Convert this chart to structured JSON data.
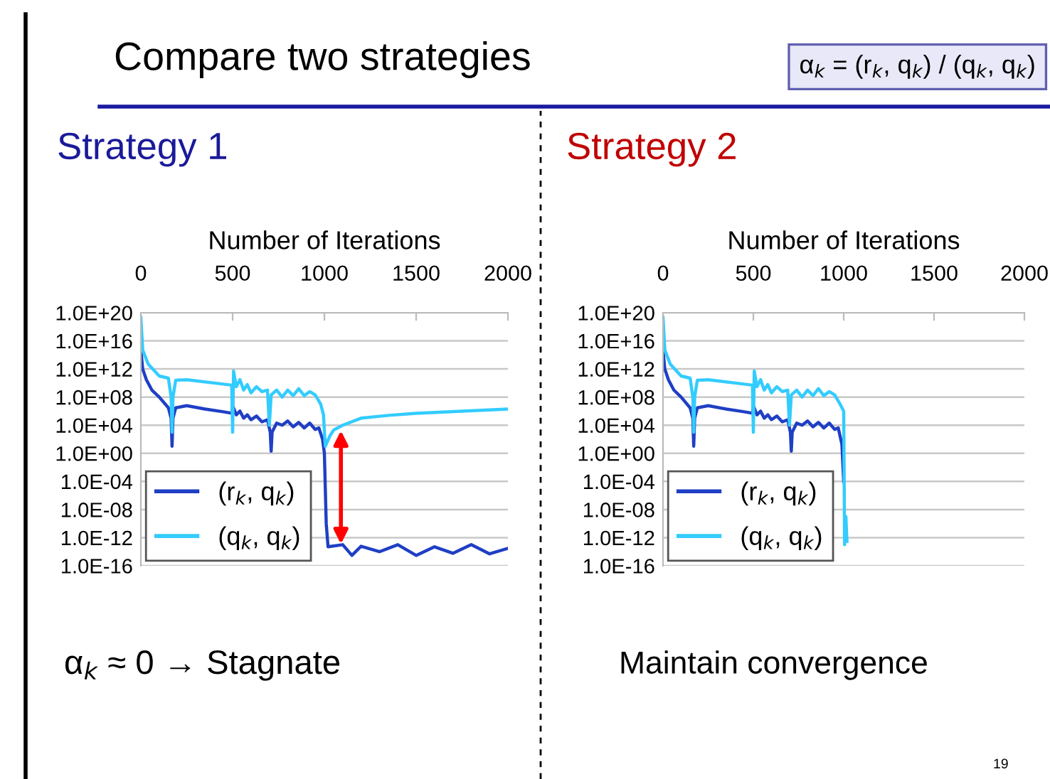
{
  "chart_data": [
    {
      "type": "line",
      "title": "Strategy 1",
      "xlabel": "Number of Iterations",
      "log": "y",
      "grid": "y",
      "legend": "bottom left",
      "marker": "none",
      "line_style": "solid",
      "xlim": [
        0,
        2000
      ],
      "xticks": [
        0,
        500,
        1000,
        1500,
        2000
      ],
      "ylim": [
        1e-16,
        1e+20
      ],
      "yticks": [
        {
          "value": 1e-16,
          "label": "1.0E-16"
        },
        {
          "value": 1e-12,
          "label": "1.0E-12"
        },
        {
          "value": 1e-08,
          "label": "1.0E-08"
        },
        {
          "value": 0.0001,
          "label": "1.0E-04"
        },
        {
          "value": 1,
          "label": "1.0E+00"
        },
        {
          "value": 10000.0,
          "label": "1.0E+04"
        },
        {
          "value": 100000000.0,
          "label": "1.0E+08"
        },
        {
          "value": 1000000000000.0,
          "label": "1.0E+12"
        },
        {
          "value": 1e+16,
          "label": "1.0E+16"
        },
        {
          "value": 1e+20,
          "label": "1.0E+20"
        }
      ],
      "annotations": [
        "Compare two strategies",
        "α$_{k}$ = (r$_{k}$, q$_{k}$) / (q$_{k}$, q$_{k}$)",
        "α$_{k}$ ≈ 0 → Stagnate"
      ],
      "series": [
        {
          "name": "(r$_{k}$, q$_{k}$)",
          "color": "#1f3fc4",
          "x": [
            0,
            10,
            30,
            60,
            100,
            150,
            165,
            170,
            175,
            190,
            250,
            350,
            450,
            495,
            500,
            520,
            540,
            560,
            580,
            600,
            630,
            660,
            690,
            705,
            710,
            715,
            740,
            770,
            800,
            830,
            860,
            890,
            920,
            950,
            970,
            990,
            1000,
            1010,
            1020,
            1100,
            1150,
            1200,
            1300,
            1400,
            1500,
            1600,
            1700,
            1800,
            1900,
            2000
          ],
          "values": [
            500000000000000.0,
            1000000000000.0,
            30000000000.0,
            1000000000.0,
            100000000.0,
            3000000.0,
            100000.0,
            10,
            100000.0,
            3000000.0,
            6000000.0,
            2000000.0,
            800000.0,
            500000.0,
            6000000.0,
            300000.0,
            1000000.0,
            100000.0,
            300000.0,
            60000.0,
            200000.0,
            30000.0,
            60000.0,
            1000.0,
            2,
            1000.0,
            20000.0,
            10000.0,
            40000.0,
            6000.0,
            25000.0,
            4000.0,
            20000.0,
            2500.0,
            4000.0,
            100,
            1,
            1e-10,
            5e-14,
            1e-13,
            3e-15,
            6e-14,
            1e-14,
            1e-13,
            3e-15,
            5e-14,
            6e-15,
            1e-13,
            5e-15,
            3e-14
          ]
        },
        {
          "name": "(q$_{k}$, q$_{k}$)",
          "color": "#33ccff",
          "x": [
            0,
            10,
            40,
            100,
            150,
            165,
            170,
            175,
            190,
            250,
            400,
            495,
            500,
            505,
            520,
            540,
            560,
            580,
            600,
            630,
            660,
            690,
            700,
            710,
            740,
            770,
            800,
            830,
            860,
            890,
            920,
            950,
            980,
            995,
            1005,
            1030,
            1050,
            1100,
            1200,
            1350,
            1500,
            1750,
            2000
          ],
          "values": [
            2e+19,
            500000000000000.0,
            5000000000000.0,
            100000000000.0,
            50000000000.0,
            100000000.0,
            1000.0,
            100000000.0,
            25000000000.0,
            30000000000.0,
            10000000000.0,
            5000000000.0,
            1000.0,
            500000000000.0,
            3000000000.0,
            30000000000.0,
            1000000000.0,
            6000000000.0,
            400000000.0,
            3000000000.0,
            600000000.0,
            1000000000.0,
            10000.0,
            200000000.0,
            1000000000.0,
            100000000.0,
            1000000000.0,
            160000000.0,
            1600000000.0,
            160000000.0,
            600000000.0,
            200000000.0,
            10000000.0,
            300000.0,
            10,
            300,
            2000.0,
            10000.0,
            100000.0,
            250000.0,
            500000.0,
            1000000.0,
            2000000.0
          ]
        }
      ]
    },
    {
      "type": "line",
      "title": "Strategy 2",
      "xlabel": "Number of Iterations",
      "log": "y",
      "grid": "y",
      "legend": "bottom left",
      "marker": "none",
      "line_style": "solid",
      "xlim": [
        0,
        2000
      ],
      "xticks": [
        0,
        500,
        1000,
        1500,
        2000
      ],
      "ylim": [
        1e-16,
        1e+20
      ],
      "yticks": [
        {
          "value": 1e-16,
          "label": "1.0E-16"
        },
        {
          "value": 1e-12,
          "label": "1.0E-12"
        },
        {
          "value": 1e-08,
          "label": "1.0E-08"
        },
        {
          "value": 0.0001,
          "label": "1.0E-04"
        },
        {
          "value": 1,
          "label": "1.0E+00"
        },
        {
          "value": 10000.0,
          "label": "1.0E+04"
        },
        {
          "value": 100000000.0,
          "label": "1.0E+08"
        },
        {
          "value": 1000000000000.0,
          "label": "1.0E+12"
        },
        {
          "value": 1e+16,
          "label": "1.0E+16"
        },
        {
          "value": 1e+20,
          "label": "1.0E+20"
        }
      ],
      "annotations": [
        "Maintain convergence",
        "19"
      ],
      "series": [
        {
          "name": "(r$_{k}$, q$_{k}$)",
          "color": "#1f3fc4",
          "x": [
            0,
            10,
            30,
            60,
            100,
            150,
            165,
            170,
            175,
            190,
            250,
            350,
            450,
            495,
            500,
            520,
            540,
            560,
            580,
            600,
            630,
            660,
            690,
            705,
            710,
            715,
            740,
            770,
            800,
            830,
            860,
            890,
            920,
            950,
            970,
            990,
            1000
          ],
          "values": [
            500000000000000.0,
            1000000000000.0,
            30000000000.0,
            1000000000.0,
            100000000.0,
            3000000.0,
            100000.0,
            10,
            100000.0,
            3000000.0,
            6000000.0,
            2000000.0,
            800000.0,
            500000.0,
            6000000.0,
            300000.0,
            1000000.0,
            100000.0,
            300000.0,
            60000.0,
            200000.0,
            30000.0,
            60000.0,
            1000.0,
            2,
            1000.0,
            20000.0,
            10000.0,
            40000.0,
            6000.0,
            25000.0,
            4000.0,
            20000.0,
            2500.0,
            4000.0,
            20,
            0.0001
          ]
        },
        {
          "name": "(q$_{k}$, q$_{k}$)",
          "color": "#33ccff",
          "x": [
            0,
            10,
            40,
            100,
            150,
            165,
            170,
            175,
            190,
            250,
            400,
            495,
            500,
            505,
            520,
            540,
            560,
            580,
            600,
            630,
            660,
            690,
            700,
            710,
            740,
            770,
            800,
            830,
            860,
            890,
            920,
            950,
            980,
            1000,
            1005,
            1012,
            1018
          ],
          "values": [
            2e+19,
            500000000000000.0,
            5000000000000.0,
            100000000000.0,
            50000000000.0,
            100000000.0,
            1000.0,
            100000000.0,
            25000000000.0,
            30000000000.0,
            10000000000.0,
            5000000000.0,
            1000.0,
            500000000000.0,
            3000000000.0,
            30000000000.0,
            1000000000.0,
            6000000000.0,
            400000000.0,
            3000000000.0,
            600000000.0,
            1000000000.0,
            10000.0,
            200000000.0,
            1000000000.0,
            100000000.0,
            1000000000.0,
            160000000.0,
            1600000000.0,
            160000000.0,
            600000000.0,
            200000000.0,
            10000000.0,
            1000000.0,
            1e-13,
            1e-09,
            3e-13
          ]
        }
      ]
    }
  ]
}
